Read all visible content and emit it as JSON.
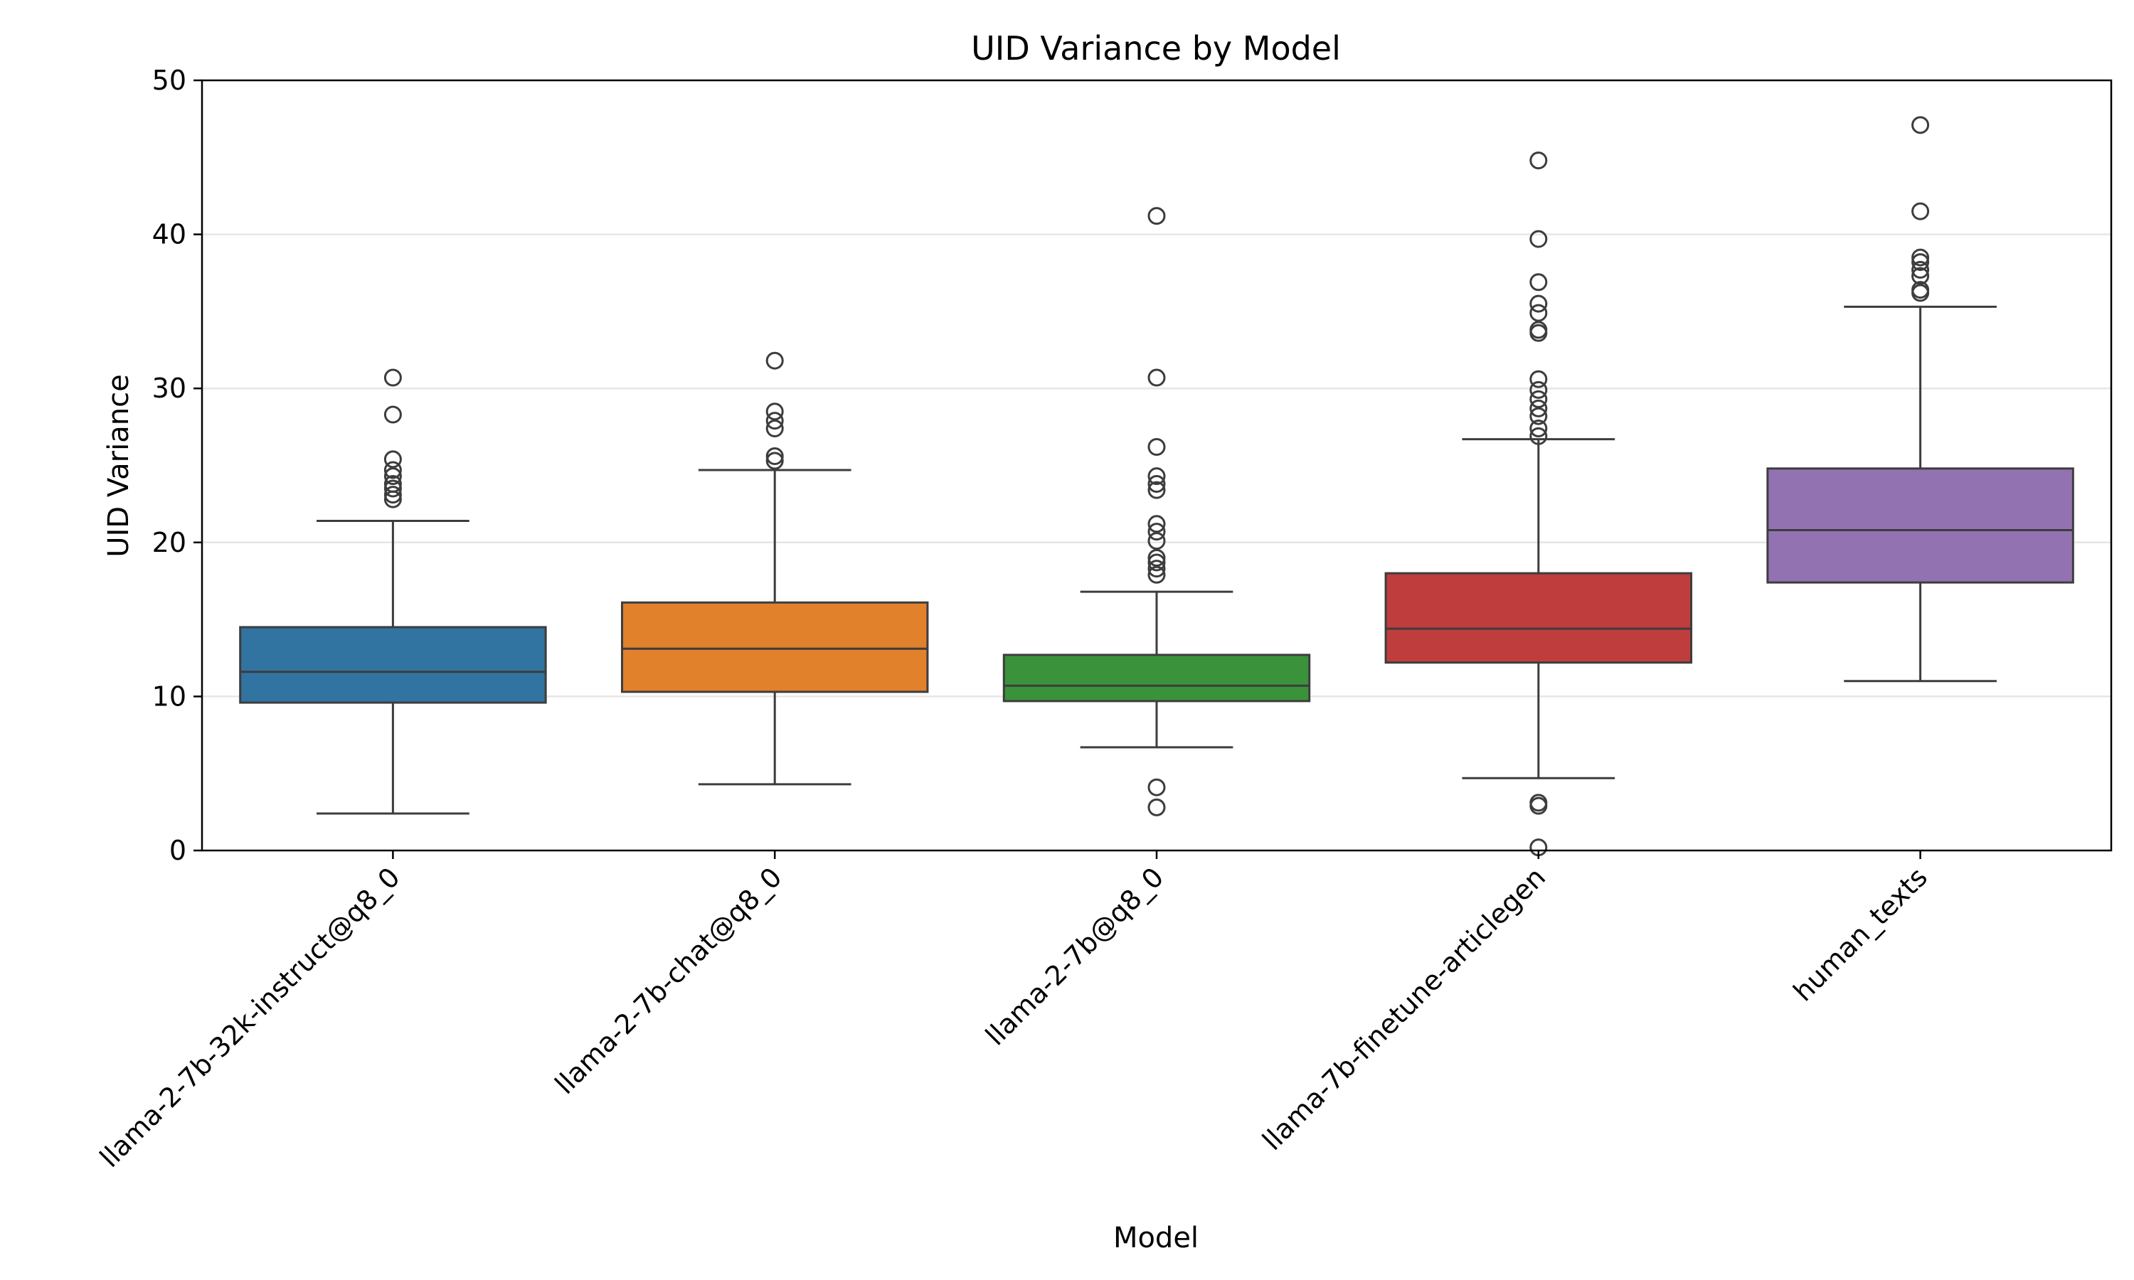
{
  "chart_data": {
    "type": "boxplot",
    "title": "UID Variance by Model",
    "xlabel": "Model",
    "ylabel": "UID Variance",
    "ylim": [
      0,
      50
    ],
    "yticks": [
      0,
      10,
      20,
      30,
      40,
      50
    ],
    "grid": "horizontal",
    "categories": [
      "llama-2-7b-32k-instruct@q8_0",
      "llama-2-7b-chat@q8_0",
      "llama-2-7b@q8_0",
      "llama-7b-finetune-articlegen",
      "human_texts"
    ],
    "series": [
      {
        "category": "llama-2-7b-32k-instruct@q8_0",
        "color": "#3274a1",
        "whisker_low": 2.4,
        "q1": 9.6,
        "median": 11.6,
        "q3": 14.5,
        "whisker_high": 21.4,
        "outliers": [
          22.8,
          23.1,
          23.5,
          23.8,
          24.3,
          24.7,
          25.4,
          28.3,
          30.7
        ]
      },
      {
        "category": "llama-2-7b-chat@q8_0",
        "color": "#e1812c",
        "whisker_low": 4.3,
        "q1": 10.3,
        "median": 13.1,
        "q3": 16.1,
        "whisker_high": 24.7,
        "outliers": [
          25.3,
          25.6,
          27.4,
          27.9,
          28.5,
          31.8
        ]
      },
      {
        "category": "llama-2-7b@q8_0",
        "color": "#3a923a",
        "whisker_low": 6.7,
        "q1": 9.7,
        "median": 10.7,
        "q3": 12.7,
        "whisker_high": 16.8,
        "outliers": [
          2.8,
          4.1,
          17.9,
          18.3,
          18.7,
          19.0,
          20.1,
          20.7,
          21.2,
          23.4,
          23.8,
          24.3,
          26.2,
          30.7,
          41.2
        ]
      },
      {
        "category": "llama-7b-finetune-articlegen",
        "color": "#c03d3e",
        "whisker_low": 4.7,
        "q1": 12.2,
        "median": 14.4,
        "q3": 18.0,
        "whisker_high": 26.7,
        "outliers": [
          0.2,
          2.9,
          3.1,
          26.9,
          27.4,
          28.2,
          28.7,
          29.3,
          29.9,
          30.6,
          33.6,
          33.8,
          34.9,
          35.5,
          36.9,
          39.7,
          44.8
        ]
      },
      {
        "category": "human_texts",
        "color": "#9372b2",
        "whisker_low": 11.0,
        "q1": 17.4,
        "median": 20.8,
        "q3": 24.8,
        "whisker_high": 35.3,
        "outliers": [
          36.2,
          36.4,
          37.3,
          37.7,
          38.2,
          38.5,
          41.5,
          47.1
        ]
      }
    ]
  }
}
